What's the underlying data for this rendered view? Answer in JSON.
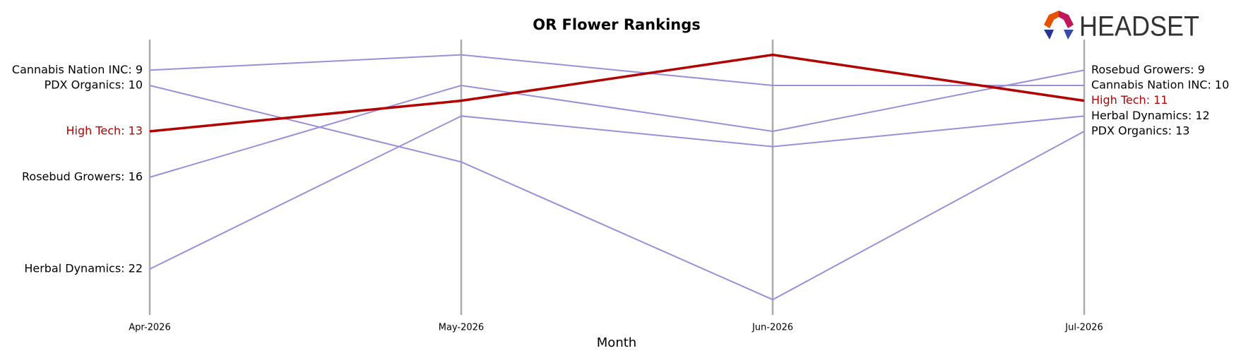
{
  "logo": "HEADSET",
  "chart_data": {
    "type": "bump",
    "title": "OR Flower Rankings",
    "x_label": "Month",
    "categories": [
      "Apr-2026",
      "May-2026",
      "Jun-2026",
      "Jul-2026"
    ],
    "ylim": [
      25,
      7
    ],
    "grid": true,
    "series": [
      {
        "name": "Cannabis Nation INC",
        "color": "#9b8fd9",
        "linewidth": 2,
        "values": [
          9,
          8,
          10,
          10
        ],
        "value_labels": [
          "Cannabis Nation INC: 9",
          null,
          null,
          "Cannabis Nation INC: 10"
        ]
      },
      {
        "name": "PDX Organics",
        "color": "#9b8fd9",
        "linewidth": 2,
        "values": [
          10,
          15,
          24,
          13
        ],
        "value_labels": [
          "PDX Organics: 10",
          null,
          null,
          "PDX Organics: 13"
        ]
      },
      {
        "name": "Rosebud Growers",
        "color": "#9b8fd9",
        "linewidth": 2,
        "values": [
          16,
          10,
          13,
          9
        ],
        "value_labels": [
          "Rosebud Growers: 16",
          null,
          null,
          "Rosebud Growers: 9"
        ]
      },
      {
        "name": "Herbal Dynamics",
        "color": "#9b8fd9",
        "linewidth": 2,
        "values": [
          22,
          12,
          14,
          12
        ],
        "value_labels": [
          "Herbal Dynamics: 22",
          null,
          null,
          "Herbal Dynamics: 12"
        ]
      },
      {
        "name": "High Tech",
        "color": "#b30000",
        "linewidth": 3.5,
        "values": [
          13,
          11,
          8,
          11
        ],
        "value_labels": [
          "High Tech: 13",
          null,
          null,
          "High Tech: 11"
        ]
      }
    ]
  }
}
